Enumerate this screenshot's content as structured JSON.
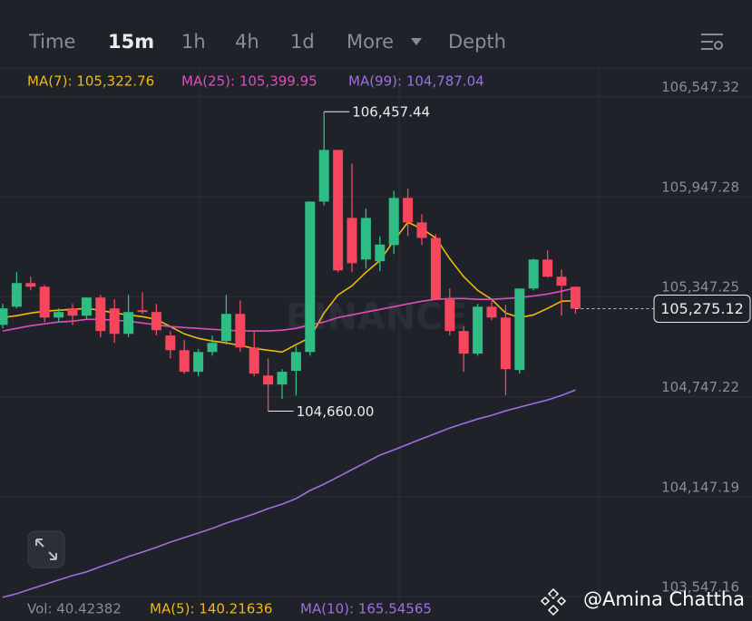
{
  "chart_data": {
    "type": "candlestick",
    "tabs": [
      "Time",
      "15m",
      "1h",
      "4h",
      "1d",
      "More",
      "Depth"
    ],
    "active_tab": 1,
    "up_color": "#2ebd85",
    "down_color": "#f6465d",
    "grid": true,
    "watermark": "BINANCE",
    "ylim": [
      103520,
      106720
    ],
    "yticks": [
      {
        "value": 106547.32,
        "label": "106,547.32"
      },
      {
        "value": 105947.28,
        "label": "105,947.28"
      },
      {
        "value": 105347.25,
        "label": "105,347.25"
      },
      {
        "value": 104747.22,
        "label": "104,747.22"
      },
      {
        "value": 104147.19,
        "label": "104,147.19"
      },
      {
        "value": 103547.16,
        "label": "103,547.16"
      }
    ],
    "open": [
      105178,
      105287,
      105429,
      105407,
      105222,
      105277,
      105233,
      105342,
      105277,
      105124,
      105266,
      105255,
      105114,
      105026,
      104896,
      105015,
      105081,
      105244,
      105042,
      104874,
      104820,
      104902,
      105015,
      105918,
      106228,
      105820,
      105570,
      105560,
      105657,
      105940,
      105793,
      105700,
      105331,
      105141,
      105005,
      105287,
      105222,
      104907,
      105396,
      105570,
      105467,
      105407
    ],
    "high": [
      105304,
      105494,
      105467,
      105418,
      105277,
      105304,
      105342,
      105358,
      105331,
      105358,
      105374,
      105304,
      105141,
      105086,
      105032,
      105114,
      105358,
      105325,
      105141,
      104977,
      104912,
      105048,
      105918,
      106457.44,
      106228,
      106146,
      105876,
      105710,
      105983,
      105995,
      105842,
      105722,
      105396,
      105168,
      105304,
      105320,
      105298,
      105396,
      105575,
      105625,
      105510,
      105407
    ],
    "low": [
      105157,
      105277,
      105385,
      105195,
      105195,
      105178,
      105211,
      105103,
      105070,
      105103,
      105244,
      105114,
      104977,
      104885,
      104869,
      104993,
      105059,
      105015,
      104869,
      104660,
      104733,
      104754,
      104993,
      105896,
      105494,
      105494,
      105515,
      105500,
      105603,
      105711,
      105657,
      105331,
      105114,
      104896,
      104993,
      105206,
      104755,
      104885,
      105385,
      105461,
      105233,
      105244
    ],
    "close": [
      105277,
      105429,
      105407,
      105222,
      105255,
      105233,
      105342,
      105141,
      105124,
      105255,
      105255,
      105146,
      105026,
      104896,
      105015,
      105070,
      105244,
      105042,
      104885,
      104820,
      104896,
      105015,
      105918,
      106228,
      105505,
      105548,
      105820,
      105660,
      105940,
      105793,
      105700,
      105331,
      105141,
      105005,
      105287,
      105222,
      104912,
      105396,
      105570,
      105467,
      105413,
      105275.12
    ],
    "last_price": {
      "value": 105275.12,
      "label": "105,275.12"
    },
    "annotations": [
      {
        "value": 106457.44,
        "label": "106,457.44"
      },
      {
        "value": 104660,
        "label": "104,660.00"
      }
    ],
    "series": [
      {
        "name": "MA(7): 105,322.76",
        "color": "#f0b90b",
        "values": [
          105222,
          105233,
          105249,
          105260,
          105266,
          105271,
          105277,
          105266,
          105249,
          105238,
          105227,
          105211,
          105168,
          105124,
          105097,
          105081,
          105070,
          105054,
          105037,
          105026,
          105015,
          105059,
          105102,
          105249,
          105358,
          105412,
          105494,
          105564,
          105684,
          105793,
          105755,
          105700,
          105575,
          105467,
          105385,
          105331,
          105249,
          105222,
          105238,
          105277,
          105320,
          105322.76
        ]
      },
      {
        "name": "MA(25): 105,399.95",
        "color": "#e04cbc",
        "values": [
          105141,
          105157,
          105173,
          105184,
          105195,
          105200,
          105211,
          105211,
          105206,
          105200,
          105189,
          105178,
          105168,
          105162,
          105157,
          105151,
          105146,
          105141,
          105141,
          105141,
          105146,
          105157,
          105178,
          105195,
          105222,
          105238,
          105255,
          105271,
          105287,
          105304,
          105320,
          105331,
          105336,
          105336,
          105331,
          105331,
          105336,
          105342,
          105352,
          105363,
          105380,
          105399.95
        ]
      },
      {
        "name": "MA(99): 104,787.04",
        "color": "#9d6fe0",
        "values": [
          103543,
          103564,
          103592,
          103619,
          103646,
          103673,
          103695,
          103727,
          103755,
          103787,
          103814,
          103842,
          103874,
          103901,
          103928,
          103956,
          103988,
          104015,
          104043,
          104075,
          104102,
          104135,
          104184,
          104222,
          104265,
          104309,
          104352,
          104396,
          104428,
          104461,
          104494,
          104526,
          104559,
          104586,
          104613,
          104635,
          104662,
          104684,
          104706,
          104727,
          104755,
          104787.04
        ]
      }
    ],
    "footer": [
      {
        "text": "Vol: 40.42382",
        "color": "#848e9c"
      },
      {
        "text": "MA(5): 140.21636",
        "color": "#f0b90b"
      },
      {
        "text": "MA(10): 165.54565",
        "color": "#9d6fe0"
      }
    ],
    "credit": "@Amina Chattha"
  }
}
